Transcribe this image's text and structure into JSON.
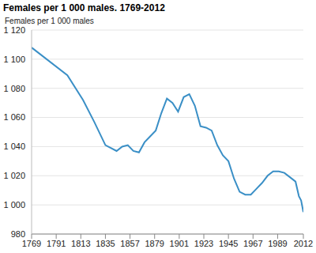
{
  "chart_data": {
    "type": "line",
    "title": "Females per 1 000 males. 1769-2012",
    "y_label": "Females per 1 000 males",
    "x": [
      1769,
      1801,
      1815,
      1825,
      1835,
      1845,
      1850,
      1855,
      1860,
      1865,
      1870,
      1875,
      1880,
      1885,
      1890,
      1895,
      1900,
      1905,
      1910,
      1915,
      1920,
      1925,
      1930,
      1935,
      1940,
      1945,
      1950,
      1955,
      1960,
      1965,
      1970,
      1975,
      1980,
      1985,
      1990,
      1995,
      2000,
      2005,
      2008,
      2010,
      2012
    ],
    "values": [
      1108,
      1089,
      1072,
      1057,
      1041,
      1037,
      1040,
      1041,
      1037,
      1036,
      1043,
      1047,
      1051,
      1063,
      1073,
      1070,
      1064,
      1074,
      1076,
      1068,
      1054,
      1053,
      1051,
      1041,
      1034,
      1030,
      1018,
      1009,
      1007,
      1007,
      1011,
      1015,
      1020,
      1023,
      1023,
      1022,
      1019,
      1016,
      1006,
      1003,
      995
    ],
    "color": "#3a8fc6",
    "xlim": [
      1769,
      2012
    ],
    "xticks": [
      1769,
      1791,
      1813,
      1835,
      1857,
      1879,
      1901,
      1923,
      1945,
      1967,
      1989,
      2012
    ],
    "ylim": [
      980,
      1120
    ],
    "yticks": [
      980,
      {
        "value": 1000,
        "label": "1 000"
      },
      {
        "value": 1020,
        "label": "1 020"
      },
      {
        "value": 1040,
        "label": "1 040"
      },
      {
        "value": 1060,
        "label": "1 060"
      },
      {
        "value": 1080,
        "label": "1 080"
      },
      {
        "value": 1100,
        "label": "1 100"
      },
      {
        "value": 1120,
        "label": "1 120"
      }
    ],
    "grid": true
  }
}
